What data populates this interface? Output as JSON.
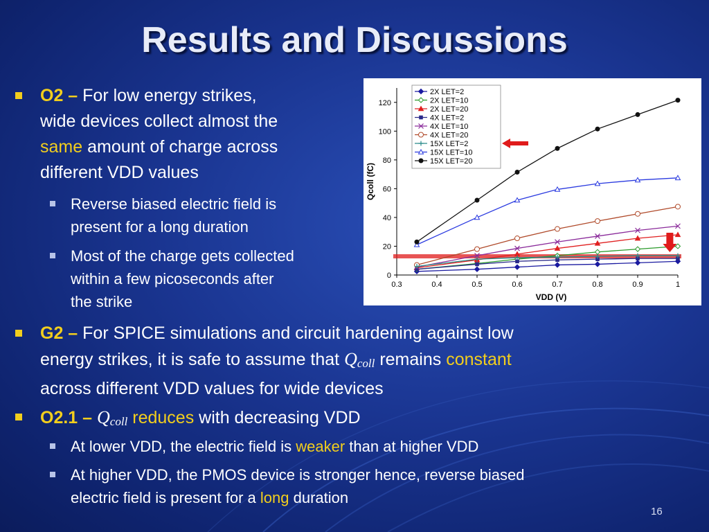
{
  "title": "Results and Discussions",
  "o2": {
    "label": "O2 –",
    "line1": "For low energy strikes,",
    "line2": "wide devices collect almost the",
    "line3_highlight": "same",
    "line3_rest": "amount of charge across",
    "line4": "different VDD values",
    "sub1_line1": "Reverse biased electric field is",
    "sub1_line2": "present for a long duration",
    "sub2_line1": "Most of the charge gets collected",
    "sub2_line2": "within a few picoseconds after",
    "sub2_line3": "the strike"
  },
  "g2": {
    "label": "G2 –",
    "line1": "For SPICE simulations and circuit hardening against low",
    "line2_a": "energy strikes, it is safe to assume that",
    "q_symbol": "Q",
    "q_sub": "coll",
    "line2_b": "remains",
    "line2_highlight": "constant",
    "line3": "across different VDD values for wide devices"
  },
  "o21": {
    "label": "O2.1 –",
    "q_symbol": "Q",
    "q_sub": "coll",
    "highlight": "reduces",
    "rest": "with decreasing VDD",
    "sub1_a": "At lower VDD, the electric field is",
    "sub1_highlight": "weaker",
    "sub1_b": "than at higher VDD",
    "sub2_line1": "At higher VDD, the PMOS device is stronger hence, reverse biased",
    "sub2_a": "electric field is present for a",
    "sub2_highlight": "long",
    "sub2_b": "duration"
  },
  "page_number": "16",
  "colors": {
    "accent_yellow": "#f2ce1d",
    "background_blue": "#1a3591",
    "arrow_red": "#e01b1b"
  },
  "chart_data": {
    "type": "line",
    "xlabel": "VDD (V)",
    "ylabel": "Qcoll (fC)",
    "xlim": [
      0.3,
      1.0
    ],
    "ylim": [
      0,
      130
    ],
    "x_ticks": [
      "0.3",
      "0.4",
      "0.5",
      "0.6",
      "0.7",
      "0.8",
      "0.9",
      "1"
    ],
    "y_ticks": [
      "0",
      "20",
      "40",
      "60",
      "80",
      "100",
      "120"
    ],
    "x": [
      0.35,
      0.5,
      0.6,
      0.7,
      0.8,
      0.9,
      1.0
    ],
    "legend_position": "top-left",
    "grid": false,
    "series": [
      {
        "name": "2X LET=2",
        "color": "#1a1aa0",
        "marker": "diamond-filled",
        "values": [
          2.5,
          4,
          5.5,
          7,
          7.5,
          8.5,
          9.5
        ]
      },
      {
        "name": "2X LET=10",
        "color": "#2a9a2a",
        "marker": "diamond-open",
        "values": [
          4,
          8,
          11,
          13.5,
          16,
          18,
          20
        ]
      },
      {
        "name": "2X LET=20",
        "color": "#e02020",
        "marker": "triangle-filled",
        "values": [
          5,
          10.5,
          14.5,
          18.5,
          22,
          25.5,
          28
        ]
      },
      {
        "name": "4X LET=2",
        "color": "#2a2a8a",
        "marker": "square-filled",
        "values": [
          4,
          7.5,
          9.5,
          10.5,
          11,
          11.5,
          11.5
        ]
      },
      {
        "name": "4X LET=10",
        "color": "#8a2a9a",
        "marker": "x",
        "values": [
          5.5,
          13.5,
          18.5,
          23,
          27,
          31,
          34
        ]
      },
      {
        "name": "4X LET=20",
        "color": "#b04a2a",
        "marker": "circle-open",
        "values": [
          7,
          18,
          25.5,
          32,
          37.5,
          42.5,
          47.5
        ]
      },
      {
        "name": "15X LET=2",
        "color": "#2a8a8a",
        "marker": "plus",
        "values": [
          6,
          11,
          12,
          12.5,
          13,
          13.5,
          13.5
        ]
      },
      {
        "name": "15X LET=10",
        "color": "#2a3ae0",
        "marker": "triangle-open",
        "values": [
          21,
          40,
          52,
          59.5,
          63.5,
          66,
          67.5
        ]
      },
      {
        "name": "15X LET=20",
        "color": "#111111",
        "marker": "circle-filled",
        "values": [
          23,
          52,
          71.5,
          88,
          101.5,
          111.5,
          121.5
        ]
      }
    ],
    "annotations": [
      {
        "type": "highlight-band",
        "color": "#e01b1b",
        "y": 13
      },
      {
        "type": "arrow-left",
        "color": "#e01b1b",
        "target_series": "15X LET=2"
      },
      {
        "type": "arrow-down",
        "color": "#e01b1b",
        "target_value": 13
      }
    ]
  }
}
